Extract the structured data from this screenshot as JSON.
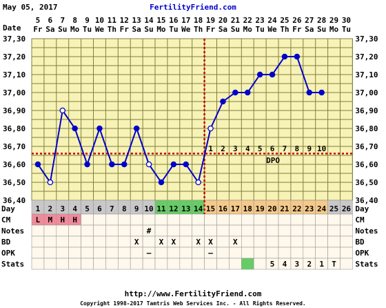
{
  "header": {
    "date": "May 05, 2017",
    "site": "FertilityFriend.com"
  },
  "footer": {
    "url": "http://www.FertilityFriend.com",
    "copyright": "Copyright 1998-2017 Tamtris Web Services Inc. - All Rights Reserved."
  },
  "chart_data": {
    "type": "line",
    "row_labels": {
      "date": "Date",
      "day": "Day",
      "cm": "CM",
      "notes": "Notes",
      "bd": "BD",
      "opk": "OPK",
      "stats": "Stats"
    },
    "dates": [
      "5",
      "6",
      "7",
      "8",
      "9",
      "10",
      "11",
      "12",
      "13",
      "14",
      "15",
      "16",
      "17",
      "18",
      "19",
      "20",
      "21",
      "22",
      "23",
      "24",
      "25",
      "26",
      "27",
      "28",
      "29",
      "30"
    ],
    "weekdays": [
      "Fr",
      "Sa",
      "Su",
      "Mo",
      "Tu",
      "We",
      "Th",
      "Fr",
      "Sa",
      "Su",
      "Mo",
      "Tu",
      "We",
      "Th",
      "Fr",
      "Sa",
      "Su",
      "Mo",
      "Tu",
      "We",
      "Th",
      "Fr",
      "Sa",
      "Su",
      "Mo",
      "Tu"
    ],
    "days": [
      "1",
      "2",
      "3",
      "4",
      "5",
      "6",
      "7",
      "8",
      "9",
      "10",
      "11",
      "12",
      "13",
      "14",
      "15",
      "16",
      "17",
      "18",
      "19",
      "20",
      "21",
      "22",
      "23",
      "24",
      "25",
      "26"
    ],
    "day_phase": [
      "none",
      "none",
      "none",
      "none",
      "none",
      "none",
      "none",
      "none",
      "none",
      "none",
      "fertile",
      "fertile",
      "fertile",
      "fertile",
      "luteal",
      "luteal",
      "luteal",
      "luteal",
      "luteal",
      "luteal",
      "luteal",
      "luteal",
      "luteal",
      "luteal",
      "none",
      "none"
    ],
    "y_ticks": [
      "36,40",
      "36,50",
      "36,60",
      "36,70",
      "36,80",
      "36,90",
      "37,00",
      "37,10",
      "37,20",
      "37,30"
    ],
    "ylim": [
      36.4,
      37.3
    ],
    "temps": [
      36.6,
      36.5,
      36.9,
      36.8,
      36.6,
      36.8,
      36.6,
      36.6,
      36.8,
      36.6,
      36.5,
      36.6,
      36.6,
      36.5,
      36.8,
      36.95,
      37.0,
      37.0,
      37.1,
      37.1,
      37.2,
      37.2,
      37.0,
      37.0,
      null,
      null
    ],
    "open_markers": [
      2,
      3,
      10,
      14,
      15
    ],
    "coverline": 36.66,
    "ovulation_day": 14,
    "dpo_labels": [
      "1",
      "2",
      "3",
      "4",
      "5",
      "6",
      "7",
      "8",
      "9",
      "10"
    ],
    "dpo_text": "DPO",
    "cm": [
      "L",
      "M",
      "H",
      "H",
      "",
      "",
      "",
      "",
      "",
      "",
      "",
      "",
      "",
      "",
      "",
      "",
      "",
      "",
      "",
      "",
      "",
      "",
      "",
      "",
      "",
      ""
    ],
    "notes": [
      "",
      "",
      "",
      "",
      "",
      "",
      "",
      "",
      "",
      "#",
      "",
      "",
      "",
      "",
      "",
      "",
      "",
      "",
      "",
      "",
      "",
      "",
      "",
      "",
      "",
      ""
    ],
    "bd": [
      "",
      "",
      "",
      "",
      "",
      "",
      "",
      "",
      "X",
      "",
      "X",
      "X",
      "",
      "X",
      "X",
      "",
      "X",
      "",
      "",
      "",
      "",
      "",
      "",
      "",
      "",
      ""
    ],
    "opk": [
      "",
      "",
      "",
      "",
      "",
      "",
      "",
      "",
      "",
      "–",
      "",
      "",
      "",
      "",
      "–",
      "",
      "",
      "",
      "",
      "",
      "",
      "",
      "",
      "",
      "",
      ""
    ],
    "stats": [
      "",
      "",
      "",
      "",
      "",
      "",
      "",
      "",
      "",
      "",
      "",
      "",
      "",
      "",
      "",
      "",
      "",
      "",
      "",
      "5",
      "4",
      "3",
      "2",
      "1",
      "T",
      ""
    ],
    "colors": {
      "line": "#0000cc",
      "coverline": "#cc0000",
      "grid": "#7f7f3f",
      "plot_bg": "#f7f2b5",
      "fertile": "#66cc66",
      "luteal": "#f5c98a",
      "neutral_day": "#c8c8c8",
      "cm_bg": "#f08a9a",
      "row_bg": "#fff8ec",
      "stats_green": "#66cc66",
      "title": "#0000cc"
    }
  }
}
